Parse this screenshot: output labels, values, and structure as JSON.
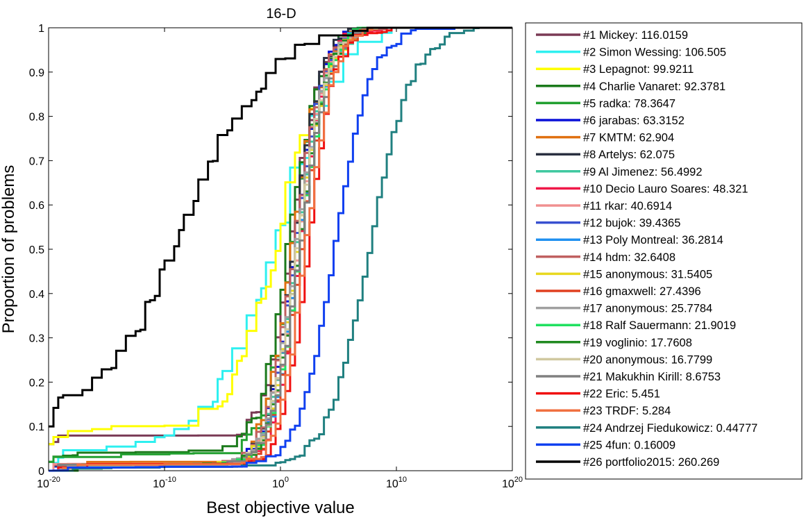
{
  "chart_data": {
    "type": "line",
    "title": "16-D",
    "xlabel": "Best objective value",
    "ylabel": "Proportion of problems",
    "x_scale": "log",
    "xlim": [
      1e-20,
      1e+20
    ],
    "ylim": [
      0,
      1
    ],
    "x_ticks": [
      {
        "base": "10",
        "exp": "-20",
        "value": -20
      },
      {
        "base": "10",
        "exp": "-10",
        "value": -10
      },
      {
        "base": "10",
        "exp": "0",
        "value": 0
      },
      {
        "base": "10",
        "exp": "10",
        "value": 10
      },
      {
        "base": "10",
        "exp": "20",
        "value": 20
      }
    ],
    "y_ticks": [
      "0",
      "0.1",
      "0.2",
      "0.3",
      "0.4",
      "0.5",
      "0.6",
      "0.7",
      "0.8",
      "0.9",
      "1"
    ],
    "grid": false,
    "legend_position": "right",
    "series": [
      {
        "name": "#1 Mickey: 116.0159",
        "color": "#7a3a55",
        "start": 0.06,
        "mid": 0.8,
        "k": 0.8,
        "wobble": 0.04
      },
      {
        "name": "#2 Simon Wessing: 106.505",
        "color": "#2ef0f0",
        "start": 0.0,
        "mid": -0.8,
        "k": 0.35,
        "wobble": 0.1
      },
      {
        "name": "#3 Lepagnot: 99.9211",
        "color": "#ffff00",
        "start": 0.06,
        "mid": -0.4,
        "k": 0.45,
        "wobble": 0.08
      },
      {
        "name": "#4 Charlie Vanaret: 92.3781",
        "color": "#1b7a1b",
        "start": 0.02,
        "mid": 0.5,
        "k": 0.75,
        "wobble": 0.05
      },
      {
        "name": "#5 radka: 78.3647",
        "color": "#22a030",
        "start": 0.02,
        "mid": 0.9,
        "k": 0.8,
        "wobble": 0.04
      },
      {
        "name": "#6 jarabas: 63.3152",
        "color": "#0a10d8",
        "start": 0.0,
        "mid": 1.0,
        "k": 0.85,
        "wobble": 0.03
      },
      {
        "name": "#7 KMTM: 62.904",
        "color": "#e07010",
        "start": 0.0,
        "mid": 0.8,
        "k": 0.8,
        "wobble": 0.04
      },
      {
        "name": "#8 Artelys: 62.075",
        "color": "#2a3040",
        "start": 0.0,
        "mid": 0.9,
        "k": 0.85,
        "wobble": 0.03
      },
      {
        "name": "#9 Al Jimenez: 56.4992",
        "color": "#40c8a0",
        "start": 0.0,
        "mid": 1.2,
        "k": 0.8,
        "wobble": 0.03
      },
      {
        "name": "#10 Decio Lauro Soares: 48.321",
        "color": "#f01848",
        "start": 0.0,
        "mid": 1.5,
        "k": 0.9,
        "wobble": 0.03
      },
      {
        "name": "#11 rkar: 40.6914",
        "color": "#f09090",
        "start": 0.0,
        "mid": 1.3,
        "k": 0.85,
        "wobble": 0.03
      },
      {
        "name": "#12 bujok: 39.4365",
        "color": "#3850d0",
        "start": 0.0,
        "mid": 1.1,
        "k": 0.85,
        "wobble": 0.03
      },
      {
        "name": "#13 Poly Montreal: 36.2814",
        "color": "#2090f0",
        "start": 0.0,
        "mid": 1.4,
        "k": 0.85,
        "wobble": 0.03
      },
      {
        "name": "#14 hdm: 32.6408",
        "color": "#c06060",
        "start": 0.0,
        "mid": 1.0,
        "k": 0.8,
        "wobble": 0.03
      },
      {
        "name": "#15 anonymous: 31.5405",
        "color": "#e8d820",
        "start": 0.0,
        "mid": 1.3,
        "k": 0.8,
        "wobble": 0.03
      },
      {
        "name": "#16 gmaxwell: 27.4396",
        "color": "#e04020",
        "start": 0.0,
        "mid": 1.6,
        "k": 0.85,
        "wobble": 0.03
      },
      {
        "name": "#17 anonymous: 25.7784",
        "color": "#a0a0a0",
        "start": 0.0,
        "mid": 1.2,
        "k": 0.8,
        "wobble": 0.03
      },
      {
        "name": "#18 Ralf Sauermann: 21.9019",
        "color": "#20e060",
        "start": 0.0,
        "mid": 1.5,
        "k": 0.85,
        "wobble": 0.03
      },
      {
        "name": "#19 voglinio: 17.7608",
        "color": "#208a20",
        "start": 0.0,
        "mid": 1.4,
        "k": 0.8,
        "wobble": 0.03
      },
      {
        "name": "#20 anonymous: 16.7799",
        "color": "#d0c8a0",
        "start": 0.0,
        "mid": 1.3,
        "k": 0.8,
        "wobble": 0.03
      },
      {
        "name": "#21 Makukhin Kirill: 8.6753",
        "color": "#808080",
        "start": 0.0,
        "mid": 1.5,
        "k": 0.8,
        "wobble": 0.03
      },
      {
        "name": "#22 Eric: 5.451",
        "color": "#f01010",
        "start": 0.0,
        "mid": 2.2,
        "k": 0.9,
        "wobble": 0.03
      },
      {
        "name": "#23 TRDF: 5.284",
        "color": "#f07040",
        "start": 0.0,
        "mid": 2.0,
        "k": 0.85,
        "wobble": 0.03
      },
      {
        "name": "#24 Andrzej Fiedukowicz: 0.44777",
        "color": "#208080",
        "start": 0.0,
        "mid": 7.5,
        "k": 0.55,
        "wobble": 0.02
      },
      {
        "name": "#25 4fun: 0.16009",
        "color": "#1040f0",
        "start": 0.0,
        "mid": 4.5,
        "k": 0.65,
        "wobble": 0.02
      },
      {
        "name": "#26 portfolio2015: 260.269",
        "color": "#000000",
        "start": 0.1,
        "mid": -8.5,
        "k": 0.28,
        "wobble": 0.05
      }
    ]
  }
}
